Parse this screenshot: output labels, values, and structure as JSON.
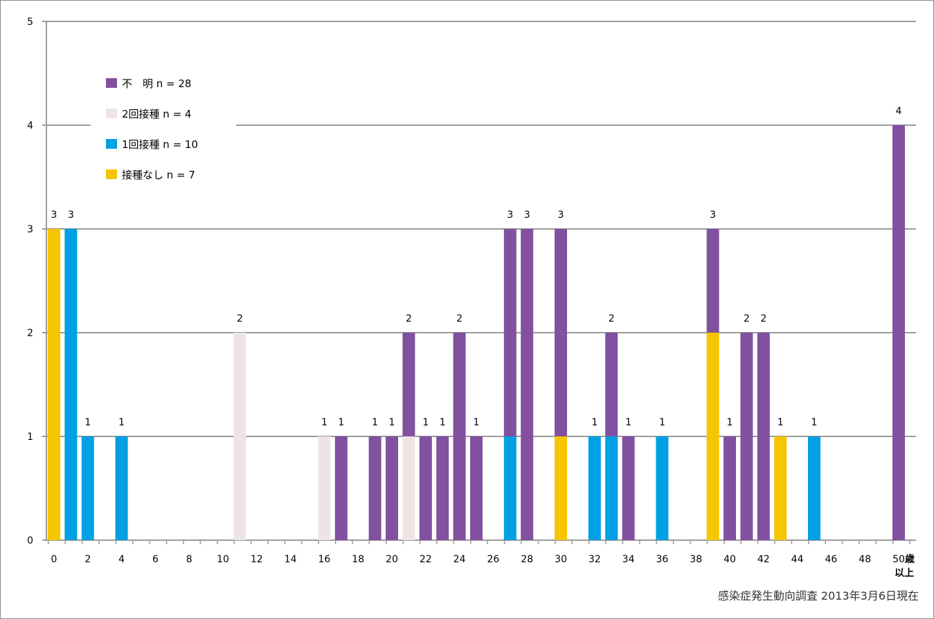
{
  "chart_data": {
    "type": "bar",
    "stacked": true,
    "y_ticks": [
      "0",
      "1",
      "2",
      "3",
      "4",
      "5"
    ],
    "ylim": [
      0,
      5
    ],
    "x_ticks": [
      "0",
      "2",
      "4",
      "6",
      "8",
      "10",
      "12",
      "14",
      "16",
      "18",
      "20",
      "22",
      "24",
      "26",
      "28",
      "30",
      "32",
      "34",
      "36",
      "38",
      "40",
      "42",
      "44",
      "46",
      "48",
      "50"
    ],
    "x_unit": "歳",
    "x_unit2": "以上",
    "grid": true,
    "legend_position": "top-left",
    "series": [
      {
        "name": "不　明 n = 28",
        "color": "#8151a0"
      },
      {
        "name": "2回接種 n = 4",
        "color": "#efe4e4"
      },
      {
        "name": "1回接種 n = 10",
        "color": "#00a0e4"
      },
      {
        "name": "接種なし n = 7",
        "color": "#f7c500"
      }
    ],
    "stack_order_bottom_to_top": [
      "接種なし",
      "1回接種",
      "2回接種",
      "不　明"
    ],
    "bars": [
      {
        "age": 0,
        "none": 3,
        "one": 0,
        "two": 0,
        "unknown": 0,
        "total": 3
      },
      {
        "age": 1,
        "none": 0,
        "one": 3,
        "two": 0,
        "unknown": 0,
        "total": 3
      },
      {
        "age": 2,
        "none": 0,
        "one": 1,
        "two": 0,
        "unknown": 0,
        "total": 1
      },
      {
        "age": 4,
        "none": 0,
        "one": 1,
        "two": 0,
        "unknown": 0,
        "total": 1
      },
      {
        "age": 11,
        "none": 0,
        "one": 0,
        "two": 2,
        "unknown": 0,
        "total": 2
      },
      {
        "age": 16,
        "none": 0,
        "one": 0,
        "two": 1,
        "unknown": 0,
        "total": 1
      },
      {
        "age": 17,
        "none": 0,
        "one": 0,
        "two": 0,
        "unknown": 1,
        "total": 1
      },
      {
        "age": 19,
        "none": 0,
        "one": 0,
        "two": 0,
        "unknown": 1,
        "total": 1
      },
      {
        "age": 20,
        "none": 0,
        "one": 0,
        "two": 0,
        "unknown": 1,
        "total": 1
      },
      {
        "age": 21,
        "none": 0,
        "one": 0,
        "two": 1,
        "unknown": 1,
        "total": 2
      },
      {
        "age": 22,
        "none": 0,
        "one": 0,
        "two": 0,
        "unknown": 1,
        "total": 1
      },
      {
        "age": 23,
        "none": 0,
        "one": 0,
        "two": 0,
        "unknown": 1,
        "total": 1
      },
      {
        "age": 24,
        "none": 0,
        "one": 0,
        "two": 0,
        "unknown": 2,
        "total": 2
      },
      {
        "age": 25,
        "none": 0,
        "one": 0,
        "two": 0,
        "unknown": 1,
        "total": 1
      },
      {
        "age": 27,
        "none": 0,
        "one": 1,
        "two": 0,
        "unknown": 2,
        "total": 3
      },
      {
        "age": 28,
        "none": 0,
        "one": 0,
        "two": 0,
        "unknown": 3,
        "total": 3
      },
      {
        "age": 30,
        "none": 1,
        "one": 0,
        "two": 0,
        "unknown": 2,
        "total": 3
      },
      {
        "age": 32,
        "none": 0,
        "one": 1,
        "two": 0,
        "unknown": 0,
        "total": 1
      },
      {
        "age": 33,
        "none": 0,
        "one": 1,
        "two": 0,
        "unknown": 1,
        "total": 2
      },
      {
        "age": 34,
        "none": 0,
        "one": 0,
        "two": 0,
        "unknown": 1,
        "total": 1
      },
      {
        "age": 36,
        "none": 0,
        "one": 1,
        "two": 0,
        "unknown": 0,
        "total": 1
      },
      {
        "age": 39,
        "none": 2,
        "one": 0,
        "two": 0,
        "unknown": 1,
        "total": 3
      },
      {
        "age": 40,
        "none": 0,
        "one": 0,
        "two": 0,
        "unknown": 1,
        "total": 1
      },
      {
        "age": 41,
        "none": 0,
        "one": 0,
        "two": 0,
        "unknown": 2,
        "total": 2
      },
      {
        "age": 42,
        "none": 0,
        "one": 0,
        "two": 0,
        "unknown": 2,
        "total": 2
      },
      {
        "age": 43,
        "none": 1,
        "one": 0,
        "two": 0,
        "unknown": 0,
        "total": 1
      },
      {
        "age": 45,
        "none": 0,
        "one": 1,
        "two": 0,
        "unknown": 0,
        "total": 1
      },
      {
        "age": 50,
        "none": 0,
        "one": 0,
        "two": 0,
        "unknown": 4,
        "total": 4
      }
    ]
  },
  "source_note": "感染症発生動向調査 2013年3月6日現在"
}
